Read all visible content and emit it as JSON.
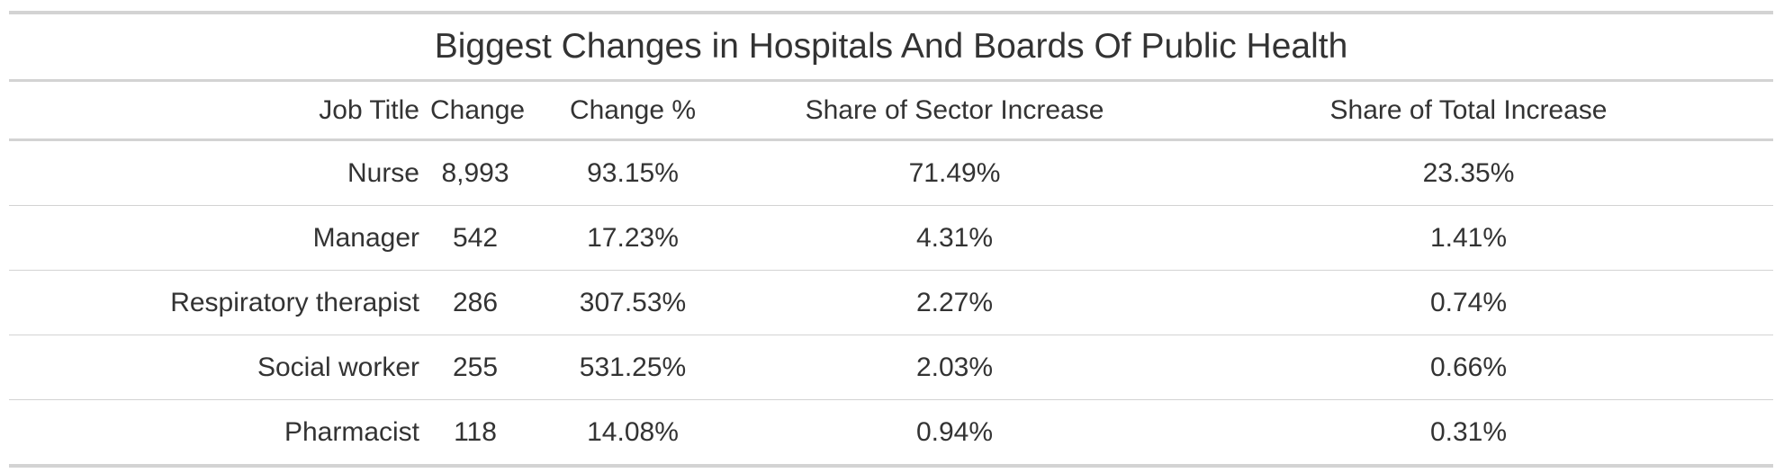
{
  "chart_data": {
    "type": "table",
    "title": "Biggest Changes in Hospitals And Boards Of Public Health",
    "columns": [
      "Job Title",
      "Change",
      "Change %",
      "Share of Sector Increase",
      "Share of Total Increase"
    ],
    "rows": [
      [
        "Nurse",
        "8,993",
        "93.15%",
        "71.49%",
        "23.35%"
      ],
      [
        "Manager",
        "542",
        "17.23%",
        "4.31%",
        "1.41%"
      ],
      [
        "Respiratory therapist",
        "286",
        "307.53%",
        "2.27%",
        "0.74%"
      ],
      [
        "Social worker",
        "255",
        "531.25%",
        "2.03%",
        "0.66%"
      ],
      [
        "Pharmacist",
        "118",
        "14.08%",
        "0.94%",
        "0.31%"
      ]
    ]
  }
}
